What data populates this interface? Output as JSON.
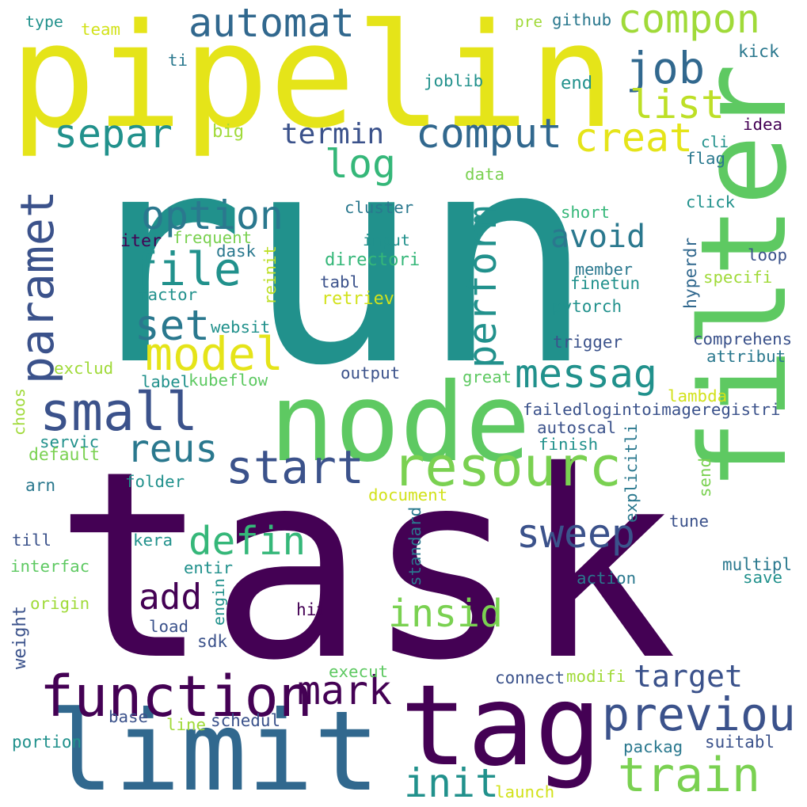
{
  "words": [
    {
      "text": "task",
      "color": "#440154"
    },
    {
      "text": "run",
      "color": "#21918c"
    },
    {
      "text": "pipelin",
      "color": "#e5e419"
    },
    {
      "text": "filter",
      "color": "#5ec962"
    },
    {
      "text": "node",
      "color": "#5ec962"
    },
    {
      "text": "limit",
      "color": "#31688e"
    },
    {
      "text": "tag",
      "color": "#440154"
    },
    {
      "text": "function",
      "color": "#440154"
    },
    {
      "text": "small",
      "color": "#3b528b"
    },
    {
      "text": "resourc",
      "color": "#7ad151"
    },
    {
      "text": "previou",
      "color": "#3b528b"
    },
    {
      "text": "train",
      "color": "#7ad151"
    },
    {
      "text": "start",
      "color": "#3b528b"
    },
    {
      "text": "paramet",
      "color": "#3b528b"
    },
    {
      "text": "automat",
      "color": "#31688e"
    },
    {
      "text": "compon",
      "color": "#a0da39"
    },
    {
      "text": "job",
      "color": "#31688e"
    },
    {
      "text": "comput",
      "color": "#31688e"
    },
    {
      "text": "separ",
      "color": "#21918c"
    },
    {
      "text": "list",
      "color": "#bddf26"
    },
    {
      "text": "creat",
      "color": "#e5e419"
    },
    {
      "text": "file",
      "color": "#21918c"
    },
    {
      "text": "set",
      "color": "#2a788e"
    },
    {
      "text": "model",
      "color": "#e5e419"
    },
    {
      "text": "option",
      "color": "#2a788e"
    },
    {
      "text": "messag",
      "color": "#21918c"
    },
    {
      "text": "reus",
      "color": "#2a788e"
    },
    {
      "text": "defin",
      "color": "#35b779"
    },
    {
      "text": "add",
      "color": "#440154"
    },
    {
      "text": "sweep",
      "color": "#3b528b"
    },
    {
      "text": "insid",
      "color": "#7ad151"
    },
    {
      "text": "mark",
      "color": "#440154"
    },
    {
      "text": "target",
      "color": "#3b528b"
    },
    {
      "text": "init",
      "color": "#21918c"
    },
    {
      "text": "perform",
      "color": "#21918c"
    },
    {
      "text": "avoid",
      "color": "#2a788e"
    },
    {
      "text": "log",
      "color": "#35b779"
    },
    {
      "text": "termin",
      "color": "#3b528b"
    },
    {
      "text": "type",
      "color": "#21918c"
    },
    {
      "text": "team",
      "color": "#d2e21b"
    },
    {
      "text": "pre",
      "color": "#a0da39"
    },
    {
      "text": "github",
      "color": "#2a788e"
    },
    {
      "text": "kick",
      "color": "#2a788e"
    },
    {
      "text": "ti",
      "color": "#2a788e"
    },
    {
      "text": "joblib",
      "color": "#21918c"
    },
    {
      "text": "end",
      "color": "#21918c"
    },
    {
      "text": "big",
      "color": "#a0da39"
    },
    {
      "text": "idea",
      "color": "#440154"
    },
    {
      "text": "cli",
      "color": "#21918c"
    },
    {
      "text": "flag",
      "color": "#2a788e"
    },
    {
      "text": "data",
      "color": "#7ad151"
    },
    {
      "text": "cluster",
      "color": "#2a788e"
    },
    {
      "text": "click",
      "color": "#21918c"
    },
    {
      "text": "short",
      "color": "#35b779"
    },
    {
      "text": "iter",
      "color": "#440154"
    },
    {
      "text": "frequent",
      "color": "#7ad151"
    },
    {
      "text": "input",
      "color": "#21918c"
    },
    {
      "text": "dask",
      "color": "#2a788e"
    },
    {
      "text": "reinit",
      "color": "#bddf26"
    },
    {
      "text": "directori",
      "color": "#35b779"
    },
    {
      "text": "loop",
      "color": "#3b528b"
    },
    {
      "text": "hyperdr",
      "color": "#31688e"
    },
    {
      "text": "member",
      "color": "#2a788e"
    },
    {
      "text": "specifi",
      "color": "#a0da39"
    },
    {
      "text": "finetun",
      "color": "#21918c"
    },
    {
      "text": "factor",
      "color": "#21918c"
    },
    {
      "text": "tabl",
      "color": "#3b528b"
    },
    {
      "text": "retriev",
      "color": "#d2e21b"
    },
    {
      "text": "pytorch",
      "color": "#21918c"
    },
    {
      "text": "websit",
      "color": "#21918c"
    },
    {
      "text": "comprehens",
      "color": "#3b528b"
    },
    {
      "text": "trigger",
      "color": "#3b528b"
    },
    {
      "text": "attribut",
      "color": "#2a788e"
    },
    {
      "text": "exclud",
      "color": "#a0da39"
    },
    {
      "text": "output",
      "color": "#3b528b"
    },
    {
      "text": "great",
      "color": "#5ec962"
    },
    {
      "text": "label",
      "color": "#21918c"
    },
    {
      "text": "kubeflow",
      "color": "#5ec962"
    },
    {
      "text": "lambda",
      "color": "#d2e21b"
    },
    {
      "text": "failedlogintoimageregistri",
      "color": "#3b528b"
    },
    {
      "text": "choos",
      "color": "#a0da39"
    },
    {
      "text": "autoscal",
      "color": "#3b528b"
    },
    {
      "text": "servic",
      "color": "#21918c"
    },
    {
      "text": "finish",
      "color": "#21918c"
    },
    {
      "text": "explicitli",
      "color": "#2a788e"
    },
    {
      "text": "default",
      "color": "#7ad151"
    },
    {
      "text": "folder",
      "color": "#21918c"
    },
    {
      "text": "send",
      "color": "#7ad151"
    },
    {
      "text": "arn",
      "color": "#2a788e"
    },
    {
      "text": "document",
      "color": "#d2e21b"
    },
    {
      "text": "standard",
      "color": "#2a788e"
    },
    {
      "text": "tune",
      "color": "#3b528b"
    },
    {
      "text": "till",
      "color": "#3b528b"
    },
    {
      "text": "kera",
      "color": "#21918c"
    },
    {
      "text": "interfac",
      "color": "#5ec962"
    },
    {
      "text": "entir",
      "color": "#21918c"
    },
    {
      "text": "multipl",
      "color": "#2a788e"
    },
    {
      "text": "action",
      "color": "#2a788e"
    },
    {
      "text": "save",
      "color": "#21918c"
    },
    {
      "text": "engin",
      "color": "#21918c"
    },
    {
      "text": "origin",
      "color": "#a0da39"
    },
    {
      "text": "hit",
      "color": "#440154"
    },
    {
      "text": "weight",
      "color": "#3b528b"
    },
    {
      "text": "load",
      "color": "#3b528b"
    },
    {
      "text": "sdk",
      "color": "#3b528b"
    },
    {
      "text": "execut",
      "color": "#5ec962"
    },
    {
      "text": "connect",
      "color": "#3b528b"
    },
    {
      "text": "modifi",
      "color": "#a0da39"
    },
    {
      "text": "base",
      "color": "#3b528b"
    },
    {
      "text": "line",
      "color": "#a0da39"
    },
    {
      "text": "schedul",
      "color": "#3b528b"
    },
    {
      "text": "portion",
      "color": "#21918c"
    },
    {
      "text": "packag",
      "color": "#2a788e"
    },
    {
      "text": "suitabl",
      "color": "#3b528b"
    },
    {
      "text": "launch",
      "color": "#d2e21b"
    }
  ]
}
